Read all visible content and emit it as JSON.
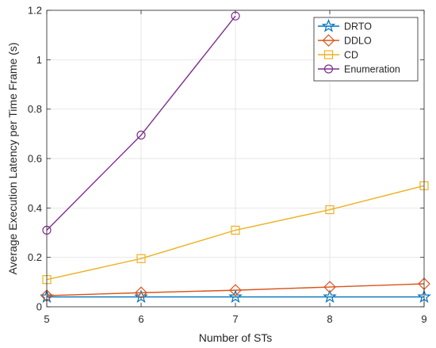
{
  "chart_data": {
    "type": "line",
    "xlabel": "Number of STs",
    "ylabel": "Average Execution Latency per Time Frame (s)",
    "xlim": [
      5,
      9
    ],
    "ylim": [
      0,
      1.2
    ],
    "xticks": [
      "5",
      "6",
      "7",
      "8",
      "9"
    ],
    "yticks": [
      "0",
      "0.2",
      "0.4",
      "0.6",
      "0.8",
      "1",
      "1.2"
    ],
    "legend_position": "top-right",
    "grid": true,
    "series": [
      {
        "name": "DRTO",
        "marker": "star",
        "color": "#0072bd",
        "x": [
          5,
          6,
          7,
          8,
          9
        ],
        "y": [
          0.04,
          0.04,
          0.04,
          0.04,
          0.04
        ]
      },
      {
        "name": "DDLO",
        "marker": "diamond",
        "color": "#d95319",
        "x": [
          5,
          6,
          7,
          8,
          9
        ],
        "y": [
          0.045,
          0.057,
          0.067,
          0.08,
          0.093
        ]
      },
      {
        "name": "CD",
        "marker": "square",
        "color": "#edb120",
        "x": [
          5,
          6,
          7,
          8,
          9
        ],
        "y": [
          0.11,
          0.195,
          0.31,
          0.393,
          0.49
        ]
      },
      {
        "name": "Enumeration",
        "marker": "circle",
        "color": "#7e2f8e",
        "x": [
          5,
          6,
          7
        ],
        "y": [
          0.31,
          0.695,
          1.177
        ]
      }
    ]
  }
}
